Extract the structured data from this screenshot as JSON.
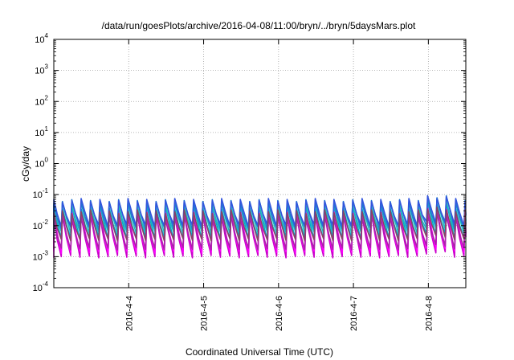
{
  "chart_data": {
    "type": "line",
    "title": "/data/run/goesPlots/archive/2016-04-08/11:00/bryn/../bryn/5daysMars.plot",
    "xlabel": "Coordinated Universal Time (UTC)",
    "ylabel": "cGy/day",
    "yscale": "log",
    "ylim": [
      0.0001,
      10000
    ],
    "xlim": [
      "2016-04-03T00:00",
      "2016-04-08T12:00"
    ],
    "y_ticks": [
      {
        "base": "10",
        "exp": "-4",
        "value": 0.0001
      },
      {
        "base": "10",
        "exp": "-3",
        "value": 0.001
      },
      {
        "base": "10",
        "exp": "-2",
        "value": 0.01
      },
      {
        "base": "10",
        "exp": "-1",
        "value": 0.1
      },
      {
        "base": "10",
        "exp": "0",
        "value": 1
      },
      {
        "base": "10",
        "exp": "1",
        "value": 10
      },
      {
        "base": "10",
        "exp": "2",
        "value": 100
      },
      {
        "base": "10",
        "exp": "3",
        "value": 1000
      },
      {
        "base": "10",
        "exp": "4",
        "value": 10000
      }
    ],
    "x_ticks": [
      {
        "label": "2016-4-4",
        "date": "2016-04-04T00:00"
      },
      {
        "label": "2016-4-5",
        "date": "2016-04-05T00:00"
      },
      {
        "label": "2016-4-6",
        "date": "2016-04-06T00:00"
      },
      {
        "label": "2016-4-7",
        "date": "2016-04-07T00:00"
      },
      {
        "label": "2016-4-8",
        "date": "2016-04-08T00:00"
      }
    ],
    "grid": true,
    "pattern": {
      "shape": "sawtooth",
      "peaks_per_day": 8
    },
    "series": [
      {
        "color": "#cc00cc",
        "peak": 0.022,
        "trough": 0.001
      },
      {
        "color": "#ff00ff",
        "peak": 0.03,
        "trough": 0.0014
      },
      {
        "color": "#aa22aa",
        "peak": 0.018,
        "trough": 0.0018
      },
      {
        "color": "#00aacc",
        "peak": 0.04,
        "trough": 0.004
      },
      {
        "color": "#22bbbb",
        "peak": 0.05,
        "trough": 0.006
      },
      {
        "color": "#1e7fd0",
        "peak": 0.06,
        "trough": 0.008
      },
      {
        "color": "#3355dd",
        "peak": 0.065,
        "trough": 0.01
      },
      {
        "color": "#884466",
        "peak": 0.028,
        "trough": 0.0035
      }
    ]
  }
}
